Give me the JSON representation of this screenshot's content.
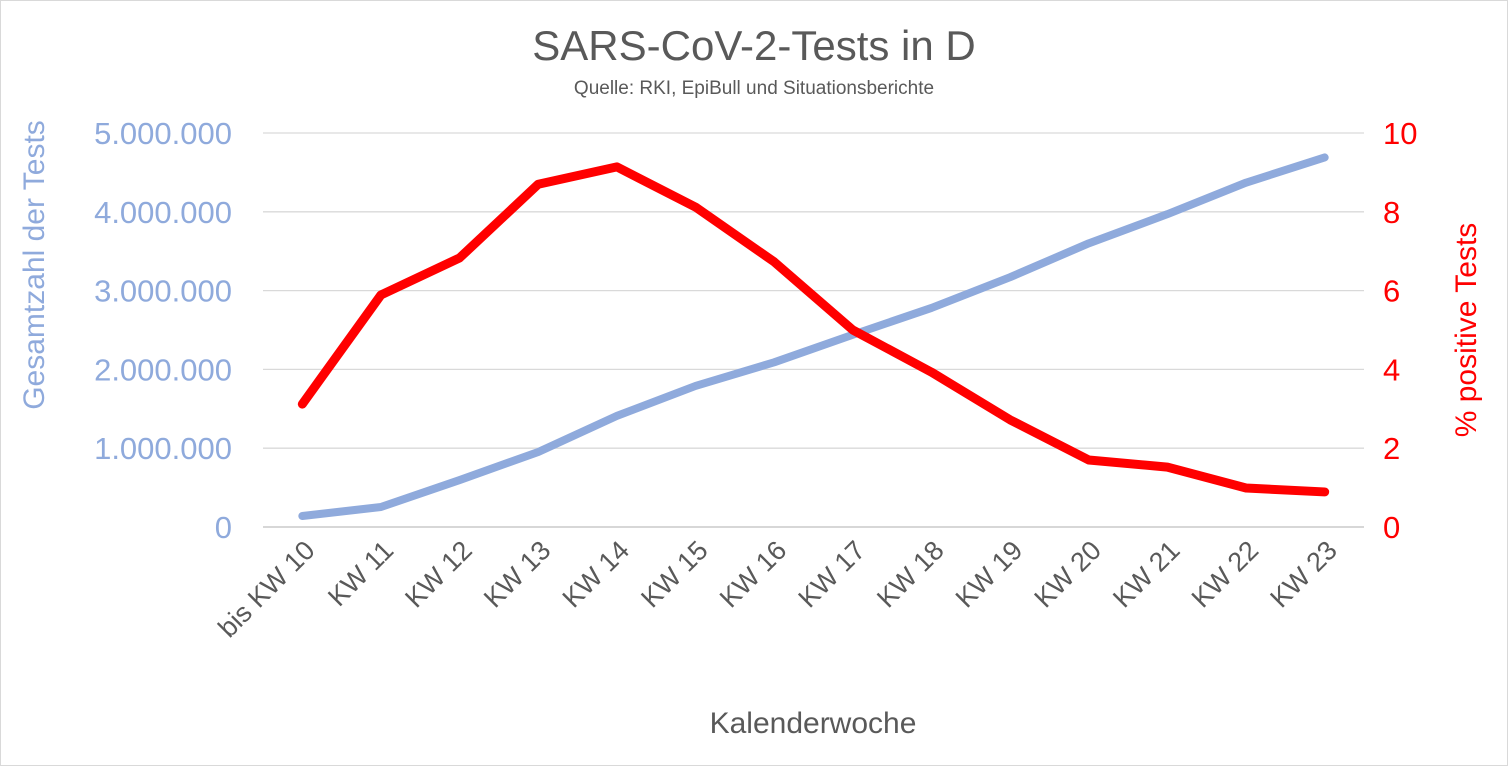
{
  "chart_data": {
    "type": "line",
    "title": "SARS-CoV-2-Tests in D",
    "subtitle": "Quelle: RKI, EpiBull und Situationsberichte",
    "xlabel": "Kalenderwoche",
    "ylabel_left": "Gesamtzahl der Tests",
    "ylabel_right": "% positive Tests",
    "categories": [
      "bis KW 10",
      "KW 11",
      "KW 12",
      "KW 13",
      "KW 14",
      "KW 15",
      "KW 16",
      "KW 17",
      "KW 18",
      "KW 19",
      "KW 20",
      "KW 21",
      "KW 22",
      "KW 23"
    ],
    "left_axis": {
      "ylim": [
        0,
        5000000
      ],
      "ticks": [
        0,
        1000000,
        2000000,
        3000000,
        4000000,
        5000000
      ],
      "tick_labels": [
        "0",
        "1.000.000",
        "2.000.000",
        "3.000.000",
        "4.000.000",
        "5.000.000"
      ],
      "color": "#8faadc"
    },
    "right_axis": {
      "ylim": [
        0,
        10
      ],
      "ticks": [
        0,
        2,
        4,
        6,
        8,
        10
      ],
      "tick_labels": [
        "0",
        "2",
        "4",
        "6",
        "8",
        "10"
      ],
      "color": "#ff0000"
    },
    "grid": true,
    "series": [
      {
        "axis": "left",
        "color": "#8faadc",
        "values": [
          140000,
          254000,
          596000,
          952000,
          1410000,
          1790000,
          2090000,
          2440000,
          2780000,
          3170000,
          3600000,
          3970000,
          4370000,
          4690000
        ]
      },
      {
        "axis": "right",
        "color": "#ff0000",
        "values": [
          3.12,
          5.89,
          6.83,
          8.7,
          9.14,
          8.12,
          6.73,
          5.0,
          3.93,
          2.72,
          1.7,
          1.52,
          0.99,
          0.89
        ]
      }
    ]
  }
}
